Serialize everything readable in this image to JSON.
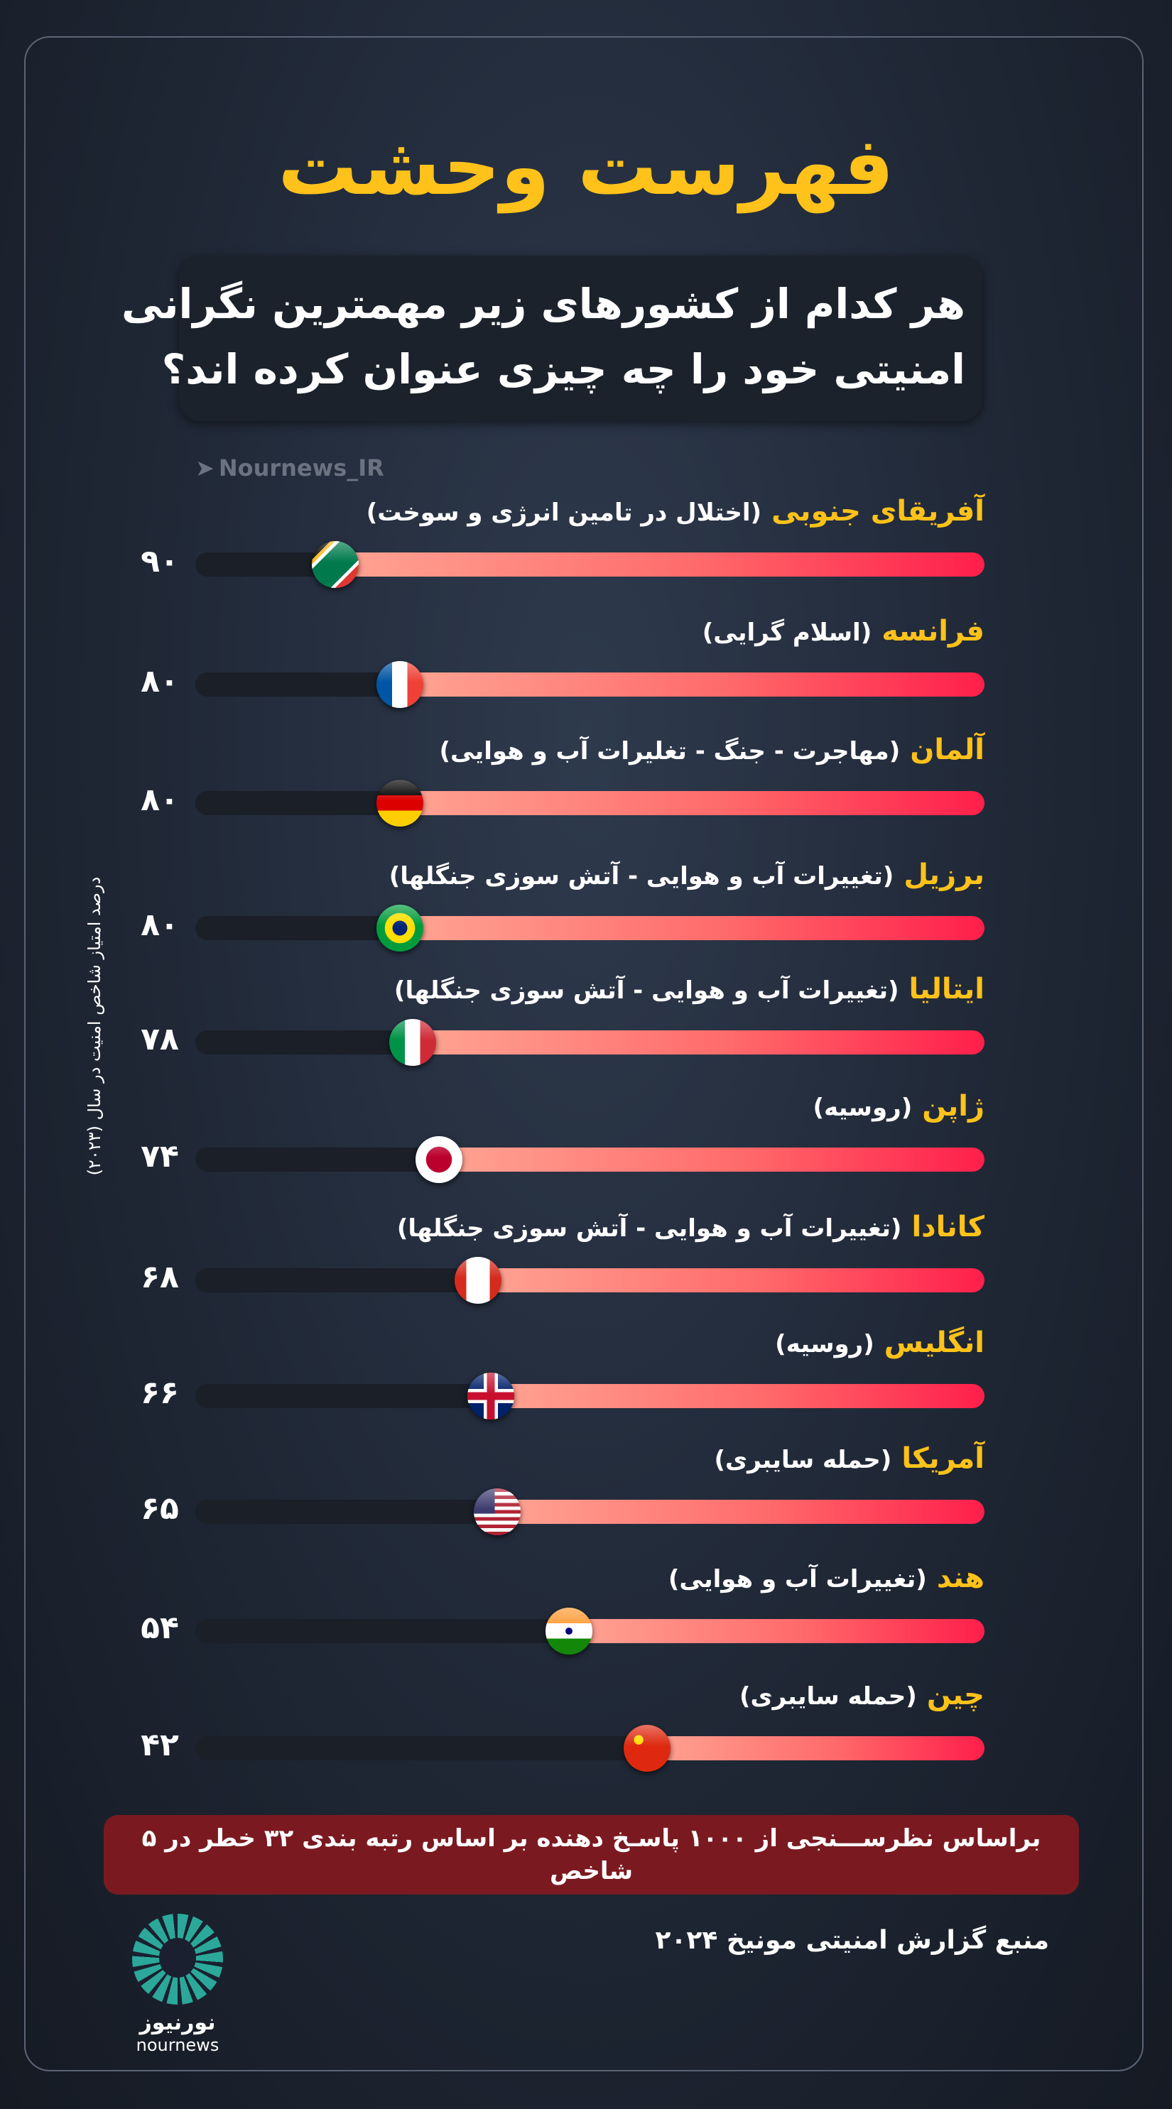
{
  "title": "فهرست وحشت",
  "subtitle": [
    "هر کدام از کشورهای زیر مهمترین نگرانی",
    "امنیتی خود  را چه چیزی عنوان کرده اند؟"
  ],
  "watermark": "Nournews_IR",
  "axis_label": "درصد امتیاز شاخص امنیت در سال (۲۰۲۳)",
  "chart_data": {
    "type": "bar",
    "ylabel": "درصد امتیاز شاخص امنیت در سال (۲۰۲۳)",
    "rows": [
      {
        "country": "آفریقای جنوبی",
        "concern": "(اختلال در تامین انرژی و سوخت)",
        "value": 90,
        "value_label": "۹۰",
        "flag": "south-africa"
      },
      {
        "country": "فرانسه",
        "concern": "(اسلام گرایی)",
        "value": 80,
        "value_label": "۸۰",
        "flag": "france"
      },
      {
        "country": "آلمان",
        "concern": "(مهاجرت - جنگ - تغلیرات آب و هوایی)",
        "value": 80,
        "value_label": "۸۰",
        "flag": "germany"
      },
      {
        "country": "برزیل",
        "concern": "(تغییرات آب و هوایی - آتش سوزی جنگلها)",
        "value": 80,
        "value_label": "۸۰",
        "flag": "brazil"
      },
      {
        "country": "ایتالیا",
        "concern": "(تغییرات آب و هوایی - آتش سوزی جنگلها)",
        "value": 78,
        "value_label": "۷۸",
        "flag": "italy"
      },
      {
        "country": "ژاپن",
        "concern": "(روسیه)",
        "value": 74,
        "value_label": "۷۴",
        "flag": "japan"
      },
      {
        "country": "کانادا",
        "concern": "(تغییرات آب و هوایی - آتش سوزی جنگلها)",
        "value": 68,
        "value_label": "۶۸",
        "flag": "canada"
      },
      {
        "country": "انگلیس",
        "concern": "(روسیه)",
        "value": 66,
        "value_label": "۶۶",
        "flag": "uk"
      },
      {
        "country": "آمریکا",
        "concern": "(حمله سایبری)",
        "value": 65,
        "value_label": "۶۵",
        "flag": "usa"
      },
      {
        "country": "هند",
        "concern": "(تغییرات آب و هوایی)",
        "value": 54,
        "value_label": "۵۴",
        "flag": "india"
      },
      {
        "country": "چین",
        "concern": "(حمله سایبری)",
        "value": 42,
        "value_label": "۴۲",
        "flag": "china"
      }
    ]
  },
  "footnote": "براساس نظرســـنجی از ۱۰۰۰ پاسـخ دهنده بر اساس رتبه بندی ۳۲ خطر در ۵ شاخص",
  "source": "منبع گزارش امنیتی مونیخ ۲۰۲۴",
  "logo": {
    "fa": "نورنیوز",
    "en": "nournews"
  },
  "colors": {
    "accent": "#ffc21a",
    "bar_end": "#ff1f4b",
    "footnote_bg": "#7a1a20"
  }
}
